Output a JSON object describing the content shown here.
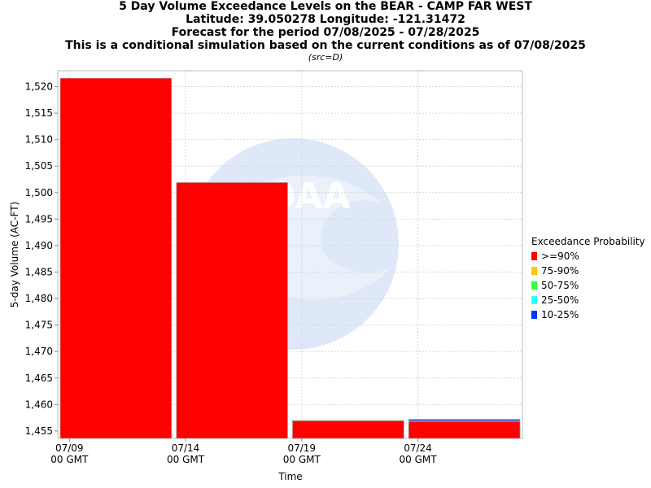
{
  "chart_data": {
    "type": "bar",
    "title_lines": [
      "5 Day Volume Exceedance Levels on the BEAR - CAMP FAR WEST",
      "Latitude: 39.050278 Longitude: -121.31472",
      "Forecast for the period 07/08/2025 - 07/28/2025",
      "This is a conditional simulation based on the current conditions as of 07/08/2025"
    ],
    "subtitle": "(src=D)",
    "xlabel": "Time",
    "ylabel": "5-day Volume (AC-FT)",
    "ylim": [
      1453.6,
      1523.0
    ],
    "yticks": [
      1455,
      1460,
      1465,
      1470,
      1475,
      1480,
      1485,
      1490,
      1495,
      1500,
      1505,
      1510,
      1515,
      1520
    ],
    "ytick_labels": [
      "1,455",
      "1,460",
      "1,465",
      "1,470",
      "1,475",
      "1,480",
      "1,485",
      "1,490",
      "1,495",
      "1,500",
      "1,505",
      "1,510",
      "1,515",
      "1,520"
    ],
    "xlim": [
      "07/08/2025 12:00",
      "07/28/2025 12:00"
    ],
    "xticks": [
      {
        "date": "07/09/2025 00:00",
        "line1": "07/09",
        "line2": "00 GMT"
      },
      {
        "date": "07/14/2025 00:00",
        "line1": "07/14",
        "line2": "00 GMT"
      },
      {
        "date": "07/19/2025 00:00",
        "line1": "07/19",
        "line2": "00 GMT"
      },
      {
        "date": "07/24/2025 00:00",
        "line1": "07/24",
        "line2": "00 GMT"
      }
    ],
    "bars": [
      {
        "start": "07/08/2025 12:00",
        "end": "07/13/2025 12:00",
        "levels": {
          ">=90%": 1521.6
        }
      },
      {
        "start": "07/13/2025 12:00",
        "end": "07/18/2025 12:00",
        "levels": {
          ">=90%": 1501.9
        }
      },
      {
        "start": "07/18/2025 12:00",
        "end": "07/23/2025 12:00",
        "levels": {
          ">=90%": 1456.9,
          "75-90%": 1457.0,
          "50-75%": 1457.0,
          "25-50%": 1457.0,
          "10-25%": 1457.0
        }
      },
      {
        "start": "07/23/2025 12:00",
        "end": "07/28/2025 12:00",
        "levels": {
          ">=90%": 1456.8,
          "75-90%": 1456.9,
          "50-75%": 1456.9,
          "25-50%": 1456.9,
          "10-25%": 1457.2
        }
      }
    ],
    "grid": true,
    "legend_placement": "right",
    "legend": {
      "title": "Exceedance Probability",
      "items": [
        {
          "label": ">=90%",
          "color": "#ff0000"
        },
        {
          "label": "75-90%",
          "color": "#ffc800"
        },
        {
          "label": "50-75%",
          "color": "#33ff33"
        },
        {
          "label": "25-50%",
          "color": "#33ffff"
        },
        {
          "label": "10-25%",
          "color": "#0033ff"
        }
      ]
    }
  }
}
